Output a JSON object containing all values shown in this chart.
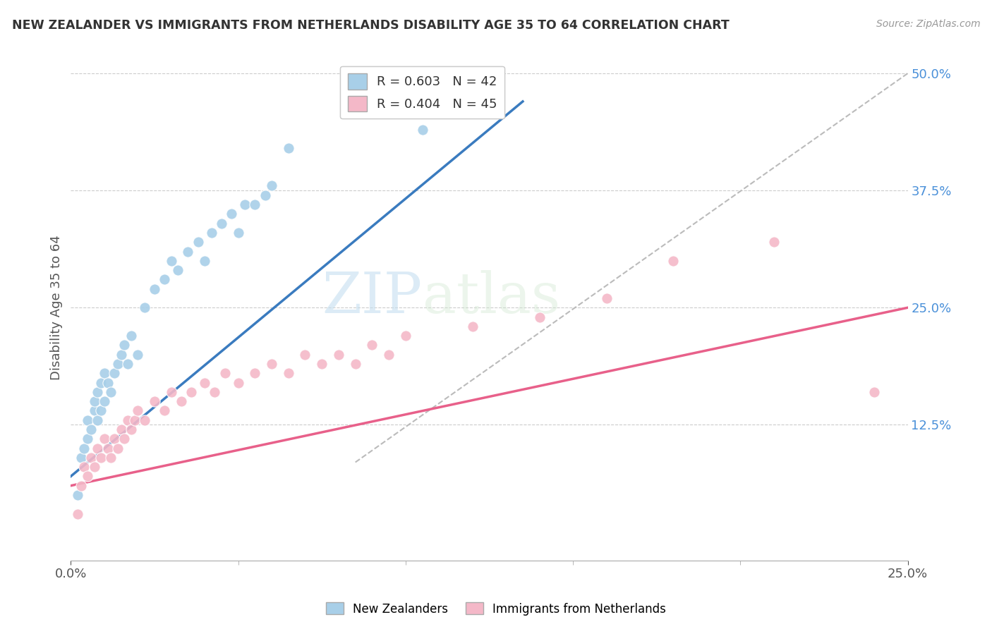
{
  "title": "NEW ZEALANDER VS IMMIGRANTS FROM NETHERLANDS DISABILITY AGE 35 TO 64 CORRELATION CHART",
  "source": "Source: ZipAtlas.com",
  "ylabel": "Disability Age 35 to 64",
  "xlim": [
    0.0,
    0.25
  ],
  "ylim": [
    -0.02,
    0.52
  ],
  "xtick_labels": [
    "0.0%",
    "25.0%"
  ],
  "ytick_labels": [
    "12.5%",
    "25.0%",
    "37.5%",
    "50.0%"
  ],
  "xtick_vals": [
    0.0,
    0.25
  ],
  "ytick_vals": [
    0.125,
    0.25,
    0.375,
    0.5
  ],
  "legend1_label": "R = 0.603   N = 42",
  "legend2_label": "R = 0.404   N = 45",
  "legend_bottom_label1": "New Zealanders",
  "legend_bottom_label2": "Immigrants from Netherlands",
  "watermark_zip": "ZIP",
  "watermark_atlas": "atlas",
  "blue_color": "#a8cfe8",
  "pink_color": "#f4b8c8",
  "line_blue": "#3a7bbf",
  "line_pink": "#e8608a",
  "diagonal_color": "#bbbbbb",
  "blue_scatter_x": [
    0.002,
    0.003,
    0.004,
    0.005,
    0.005,
    0.006,
    0.007,
    0.007,
    0.008,
    0.008,
    0.009,
    0.009,
    0.01,
    0.01,
    0.011,
    0.012,
    0.013,
    0.014,
    0.015,
    0.016,
    0.017,
    0.018,
    0.02,
    0.022,
    0.025,
    0.028,
    0.03,
    0.032,
    0.035,
    0.038,
    0.04,
    0.042,
    0.045,
    0.048,
    0.05,
    0.052,
    0.055,
    0.058,
    0.06,
    0.065,
    0.105,
    0.12
  ],
  "blue_scatter_y": [
    0.05,
    0.09,
    0.1,
    0.11,
    0.13,
    0.12,
    0.14,
    0.15,
    0.13,
    0.16,
    0.14,
    0.17,
    0.15,
    0.18,
    0.17,
    0.16,
    0.18,
    0.19,
    0.2,
    0.21,
    0.19,
    0.22,
    0.2,
    0.25,
    0.27,
    0.28,
    0.3,
    0.29,
    0.31,
    0.32,
    0.3,
    0.33,
    0.34,
    0.35,
    0.33,
    0.36,
    0.36,
    0.37,
    0.38,
    0.42,
    0.44,
    0.47
  ],
  "pink_scatter_x": [
    0.002,
    0.003,
    0.004,
    0.005,
    0.006,
    0.007,
    0.008,
    0.009,
    0.01,
    0.011,
    0.012,
    0.013,
    0.014,
    0.015,
    0.016,
    0.017,
    0.018,
    0.019,
    0.02,
    0.022,
    0.025,
    0.028,
    0.03,
    0.033,
    0.036,
    0.04,
    0.043,
    0.046,
    0.05,
    0.055,
    0.06,
    0.065,
    0.07,
    0.075,
    0.08,
    0.085,
    0.09,
    0.095,
    0.1,
    0.12,
    0.14,
    0.16,
    0.18,
    0.21,
    0.24
  ],
  "pink_scatter_y": [
    0.03,
    0.06,
    0.08,
    0.07,
    0.09,
    0.08,
    0.1,
    0.09,
    0.11,
    0.1,
    0.09,
    0.11,
    0.1,
    0.12,
    0.11,
    0.13,
    0.12,
    0.13,
    0.14,
    0.13,
    0.15,
    0.14,
    0.16,
    0.15,
    0.16,
    0.17,
    0.16,
    0.18,
    0.17,
    0.18,
    0.19,
    0.18,
    0.2,
    0.19,
    0.2,
    0.19,
    0.21,
    0.2,
    0.22,
    0.23,
    0.24,
    0.26,
    0.3,
    0.32,
    0.16
  ],
  "blue_line_x": [
    0.0,
    0.135
  ],
  "blue_line_y": [
    0.07,
    0.47
  ],
  "pink_line_x": [
    0.0,
    0.25
  ],
  "pink_line_y": [
    0.06,
    0.25
  ],
  "diag_line_x": [
    0.085,
    0.25
  ],
  "diag_line_y": [
    0.085,
    0.5
  ]
}
